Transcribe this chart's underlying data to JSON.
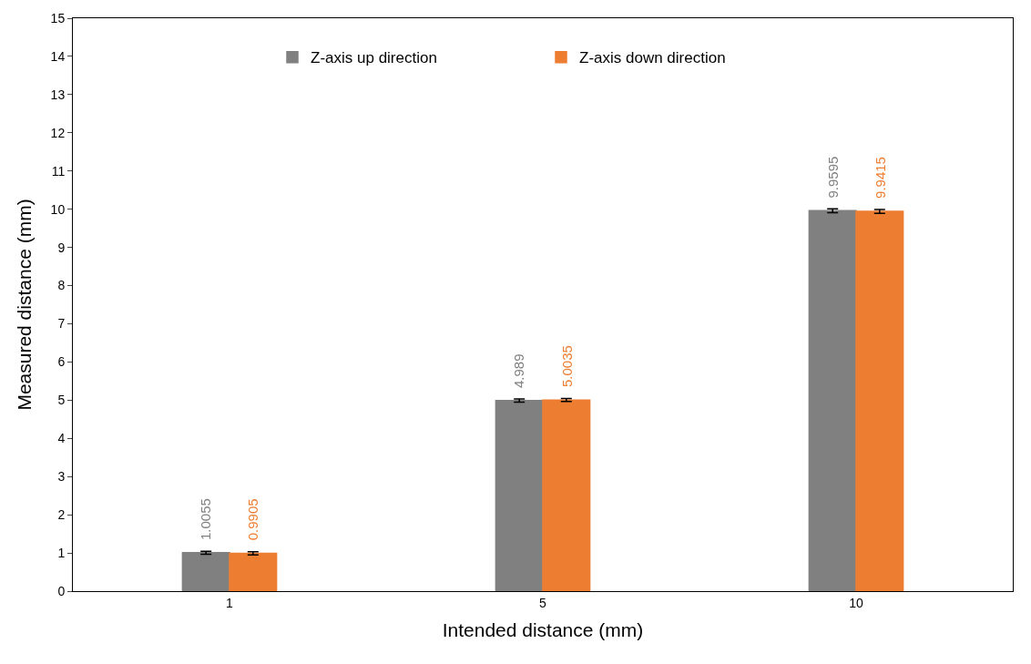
{
  "chart_data": {
    "type": "bar",
    "xlabel": "Intended distance (mm)",
    "ylabel": "Measured distance (mm)",
    "categories": [
      "1",
      "5",
      "10"
    ],
    "series": [
      {
        "name": "Z-axis up direction",
        "color": "#808080",
        "values": [
          1.0055,
          4.989,
          9.9595
        ],
        "errors": [
          0.04,
          0.04,
          0.05
        ]
      },
      {
        "name": "Z-axis down direction",
        "color": "#ed7d31",
        "values": [
          0.9905,
          5.0035,
          9.9415
        ],
        "errors": [
          0.04,
          0.04,
          0.05
        ]
      }
    ],
    "ylim": [
      0,
      15
    ],
    "yticks": [
      0,
      1,
      2,
      3,
      4,
      5,
      6,
      7,
      8,
      9,
      10,
      11,
      12,
      13,
      14,
      15
    ],
    "data_labels": true,
    "legend": "top"
  }
}
